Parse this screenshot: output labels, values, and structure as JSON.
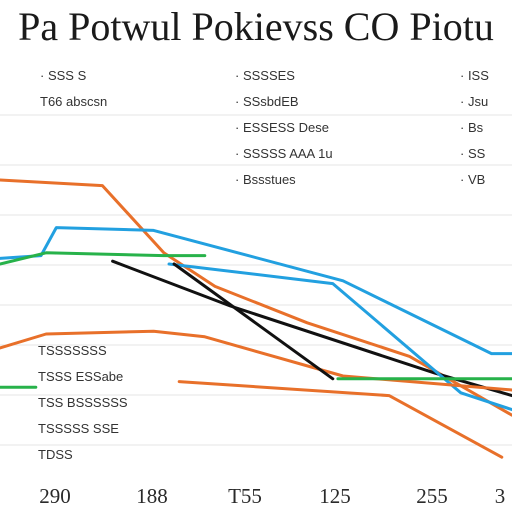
{
  "chart_data": {
    "type": "line",
    "title": "Pa Potwul Pokievss CO Piotu",
    "xlabel": "",
    "ylabel": "",
    "x_ticks": [
      "290",
      "188",
      "T55",
      "125",
      "255",
      "3"
    ],
    "xlim": [
      0,
      10
    ],
    "ylim": [
      0,
      10
    ],
    "grid": true,
    "legend": "none",
    "annotations": [
      {
        "text": "· SSS S",
        "col": 0,
        "row": 0
      },
      {
        "text": "T66 abscsn",
        "col": 0,
        "row": 1
      },
      {
        "text": "· SSSSES",
        "col": 1,
        "row": 0
      },
      {
        "text": "· SSsbdEB",
        "col": 1,
        "row": 1
      },
      {
        "text": "· ESSESS Dese",
        "col": 1,
        "row": 2
      },
      {
        "text": "· SSSSS AAA 1u",
        "col": 1,
        "row": 3
      },
      {
        "text": "· Bssstues",
        "col": 1,
        "row": 4
      },
      {
        "text": "· ISS",
        "col": 2,
        "row": 0
      },
      {
        "text": "· Jsu",
        "col": 2,
        "row": 1
      },
      {
        "text": "· Bs",
        "col": 2,
        "row": 2
      },
      {
        "text": "· SS",
        "col": 2,
        "row": 3
      },
      {
        "text": "· VB",
        "col": 2,
        "row": 4
      },
      {
        "text": "TSSSSSSS",
        "col": 3,
        "row": 0
      },
      {
        "text": "TSSS ESSabe",
        "col": 3,
        "row": 1
      },
      {
        "text": "TSS BSSSSSS",
        "col": 3,
        "row": 2
      },
      {
        "text": "TSSSSS SSE",
        "col": 3,
        "row": 3
      },
      {
        "text": "TDSS",
        "col": 3,
        "row": 4
      }
    ],
    "series": [
      {
        "color": "#e8702a",
        "x": [
          0,
          2,
          3.2,
          4.2,
          6,
          8,
          10
        ],
        "y": [
          10,
          9.8,
          7.4,
          6.2,
          4.9,
          3.7,
          1.6
        ]
      },
      {
        "color": "#22a0e0",
        "x": [
          0,
          0.8,
          1.1,
          3.0,
          6.7,
          9.6,
          10
        ],
        "y": [
          7.2,
          7.3,
          8.3,
          8.2,
          6.4,
          3.8,
          3.8
        ]
      },
      {
        "color": "#27b24a",
        "x": [
          0,
          0.9,
          3.2,
          4.0
        ],
        "y": [
          7.0,
          7.4,
          7.3,
          7.3
        ]
      },
      {
        "color": "#111111",
        "x": [
          2.2,
          4.5,
          8.5,
          10
        ],
        "y": [
          7.1,
          5.5,
          3.1,
          2.3
        ]
      },
      {
        "color": "#22a0e0",
        "x": [
          3.3,
          6.5,
          9.0,
          10
        ],
        "y": [
          7.0,
          6.3,
          2.4,
          1.8
        ]
      },
      {
        "color": "#e8702a",
        "x": [
          0,
          0.9,
          3.0,
          4.0,
          6.7,
          10
        ],
        "y": [
          4.0,
          4.5,
          4.6,
          4.4,
          3.0,
          2.5
        ]
      },
      {
        "color": "#111111",
        "x": [
          3.4,
          6.5
        ],
        "y": [
          7.0,
          2.9
        ]
      },
      {
        "color": "#27b24a",
        "x": [
          6.6,
          10
        ],
        "y": [
          2.9,
          2.9
        ]
      },
      {
        "color": "#27b24a",
        "x": [
          0,
          0.7
        ],
        "y": [
          2.6,
          2.6
        ]
      },
      {
        "color": "#e8702a",
        "x": [
          3.5,
          7.6,
          9.8
        ],
        "y": [
          2.8,
          2.3,
          0.1
        ]
      }
    ]
  }
}
